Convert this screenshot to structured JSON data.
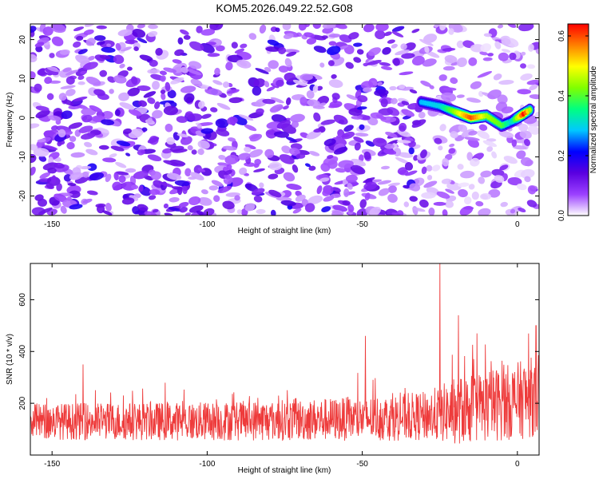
{
  "figure_title": "KOM5.2026.049.22.52.G08",
  "chart_data": [
    {
      "type": "heatmap",
      "title": "KOM5.2026.049.22.52.G08",
      "xlabel": "Height of straight line (km)",
      "ylabel": "Frequency (Hz)",
      "xlim": [
        -157,
        7
      ],
      "ylim": [
        -25,
        24
      ],
      "x_ticks": [
        -150,
        -100,
        -50,
        0
      ],
      "y_ticks": [
        -20,
        -10,
        0,
        10,
        20
      ],
      "colorbar": {
        "label": "Normalized spectral amplitude",
        "range": [
          0.0,
          0.64
        ],
        "ticks": [
          0.0,
          0.2,
          0.4,
          0.6
        ],
        "colormap": [
          "#ffffff",
          "#9b40ff",
          "#5a00e0",
          "#0000ff",
          "#00c8ff",
          "#00ff80",
          "#80ff00",
          "#ffff00",
          "#ff8000",
          "#ff0000"
        ]
      },
      "background_level": 0.1,
      "signal_ridge": {
        "x": [
          -31,
          -25,
          -20,
          -15,
          -10,
          -5,
          -2,
          2,
          4
        ],
        "frequency": [
          4,
          3,
          1.5,
          0,
          0.5,
          -2,
          -1,
          1,
          2
        ],
        "amplitude": [
          0.28,
          0.3,
          0.45,
          0.6,
          0.45,
          0.4,
          0.3,
          0.64,
          0.45
        ]
      }
    },
    {
      "type": "line",
      "xlabel": "Height of straight line (km)",
      "ylabel": "SNR (10 * v/v)",
      "xlim": [
        -157,
        7
      ],
      "ylim": [
        0,
        740
      ],
      "x_ticks": [
        -150,
        -100,
        -50,
        0
      ],
      "y_ticks": [
        200,
        400,
        600
      ],
      "series": [
        {
          "name": "SNR",
          "color": "#ee3b3b",
          "envelope_x": [
            -157,
            -100,
            -50,
            -30,
            -25,
            -20,
            -10,
            0,
            7
          ],
          "baseline": [
            130,
            130,
            140,
            150,
            160,
            170,
            190,
            210,
            230
          ],
          "spread": [
            70,
            75,
            85,
            95,
            110,
            130,
            140,
            150,
            160
          ],
          "peaks": [
            {
              "x": -25,
              "y": 740
            },
            {
              "x": -19,
              "y": 540
            },
            {
              "x": -13,
              "y": 470
            },
            {
              "x": -49,
              "y": 460
            },
            {
              "x": 6,
              "y": 500
            },
            {
              "x": -140,
              "y": 350
            }
          ]
        }
      ]
    }
  ]
}
